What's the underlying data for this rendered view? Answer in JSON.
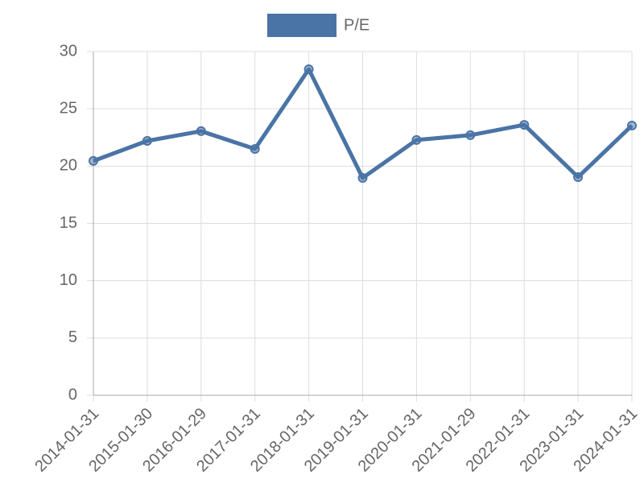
{
  "chart_data": {
    "type": "line",
    "categories": [
      "2014-01-31",
      "2015-01-30",
      "2016-01-29",
      "2017-01-31",
      "2018-01-31",
      "2019-01-31",
      "2020-01-31",
      "2021-01-29",
      "2022-01-31",
      "2023-01-31",
      "2024-01-31"
    ],
    "series": [
      {
        "name": "P/E",
        "color": "#4a74a5",
        "values": [
          20.45,
          22.2,
          23.05,
          21.5,
          28.45,
          18.97,
          22.28,
          22.7,
          23.6,
          19.04,
          23.54
        ]
      }
    ],
    "ylim": [
      0,
      30
    ],
    "yticks": [
      0,
      5,
      10,
      15,
      20,
      25,
      30
    ],
    "grid": true,
    "legend": "top"
  }
}
